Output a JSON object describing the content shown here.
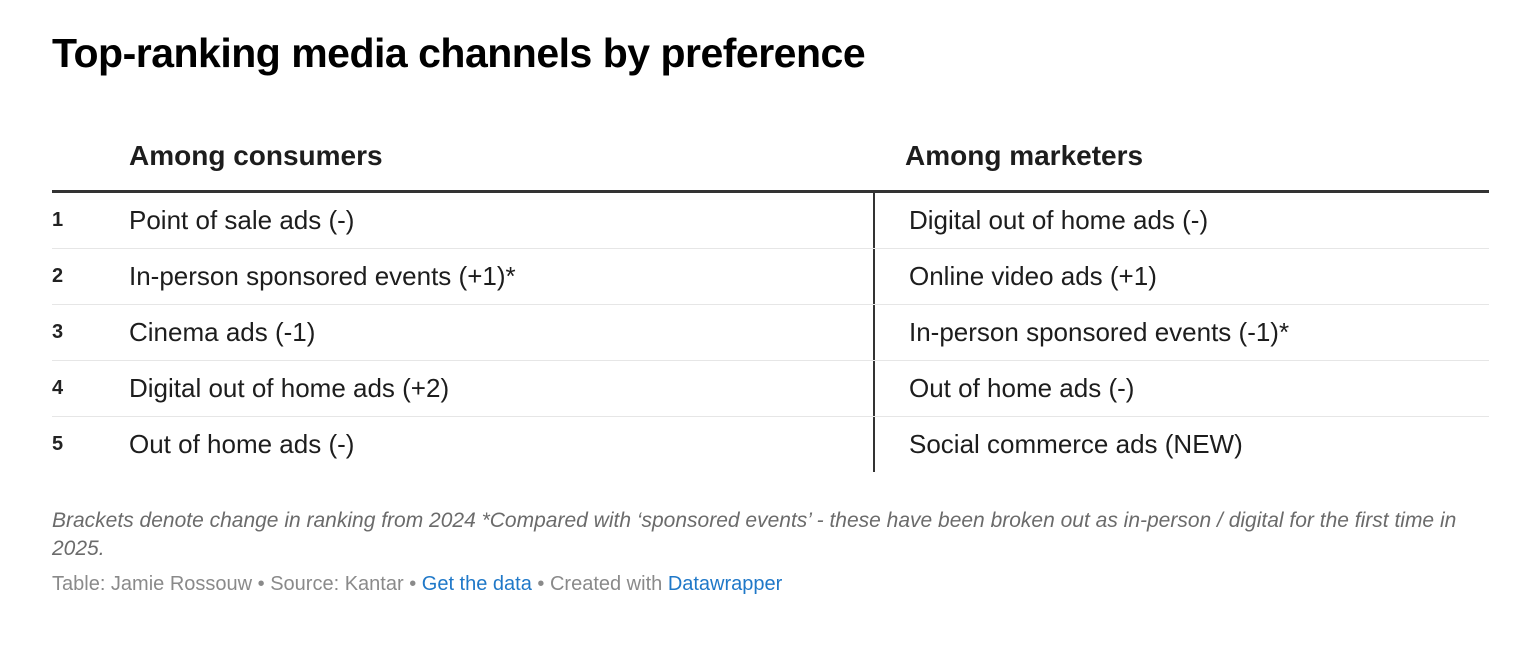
{
  "title": "Top-ranking media channels by preference",
  "chart_data": {
    "type": "table",
    "columns": [
      "",
      "Among consumers",
      "Among marketers"
    ],
    "rows": [
      {
        "rank": "1",
        "consumers": "Point of sale ads (-)",
        "marketers": "Digital out of home ads (-)"
      },
      {
        "rank": "2",
        "consumers": "In-person sponsored events (+1)*",
        "marketers": "Online video ads (+1)"
      },
      {
        "rank": "3",
        "consumers": "Cinema ads (-1)",
        "marketers": "In-person sponsored events (-1)*"
      },
      {
        "rank": "4",
        "consumers": "Digital out of home ads (+2)",
        "marketers": "Out of home ads (-)"
      },
      {
        "rank": "5",
        "consumers": "Out of home ads (-)",
        "marketers": "Social commerce ads (NEW)"
      }
    ]
  },
  "notes": "Brackets denote change in ranking from 2024 *Compared with ‘sponsored events’ - these have been broken out as in-person / digital for the first time in 2025.",
  "footer": {
    "table_credit": "Table: Jamie Rossouw",
    "separator": " • ",
    "source": "Source: Kantar",
    "get_data_link": "Get the data",
    "created_with": "Created with",
    "datawrapper_link": "Datawrapper"
  },
  "colors": {
    "text": "#1d1d1d",
    "muted": "#8a8a8a",
    "link": "#1f78c8",
    "rule": "#333333",
    "row_divider": "#e6e6e6"
  }
}
